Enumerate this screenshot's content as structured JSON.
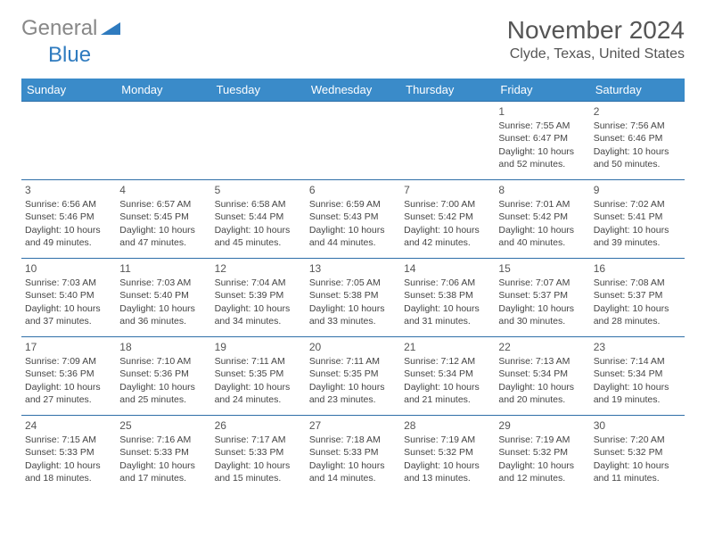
{
  "logo": {
    "gray": "General",
    "blue": "Blue"
  },
  "title": "November 2024",
  "location": "Clyde, Texas, United States",
  "colors": {
    "header_bg": "#3a8bc9",
    "header_text": "#ffffff",
    "border": "#2f6fa8",
    "logo_gray": "#888888",
    "logo_blue": "#2f7bbf",
    "body_text": "#444444"
  },
  "daysOfWeek": [
    "Sunday",
    "Monday",
    "Tuesday",
    "Wednesday",
    "Thursday",
    "Friday",
    "Saturday"
  ],
  "weeks": [
    [
      null,
      null,
      null,
      null,
      null,
      {
        "n": "1",
        "sr": "7:55 AM",
        "ss": "6:47 PM",
        "dl": "10 hours and 52 minutes."
      },
      {
        "n": "2",
        "sr": "7:56 AM",
        "ss": "6:46 PM",
        "dl": "10 hours and 50 minutes."
      }
    ],
    [
      {
        "n": "3",
        "sr": "6:56 AM",
        "ss": "5:46 PM",
        "dl": "10 hours and 49 minutes."
      },
      {
        "n": "4",
        "sr": "6:57 AM",
        "ss": "5:45 PM",
        "dl": "10 hours and 47 minutes."
      },
      {
        "n": "5",
        "sr": "6:58 AM",
        "ss": "5:44 PM",
        "dl": "10 hours and 45 minutes."
      },
      {
        "n": "6",
        "sr": "6:59 AM",
        "ss": "5:43 PM",
        "dl": "10 hours and 44 minutes."
      },
      {
        "n": "7",
        "sr": "7:00 AM",
        "ss": "5:42 PM",
        "dl": "10 hours and 42 minutes."
      },
      {
        "n": "8",
        "sr": "7:01 AM",
        "ss": "5:42 PM",
        "dl": "10 hours and 40 minutes."
      },
      {
        "n": "9",
        "sr": "7:02 AM",
        "ss": "5:41 PM",
        "dl": "10 hours and 39 minutes."
      }
    ],
    [
      {
        "n": "10",
        "sr": "7:03 AM",
        "ss": "5:40 PM",
        "dl": "10 hours and 37 minutes."
      },
      {
        "n": "11",
        "sr": "7:03 AM",
        "ss": "5:40 PM",
        "dl": "10 hours and 36 minutes."
      },
      {
        "n": "12",
        "sr": "7:04 AM",
        "ss": "5:39 PM",
        "dl": "10 hours and 34 minutes."
      },
      {
        "n": "13",
        "sr": "7:05 AM",
        "ss": "5:38 PM",
        "dl": "10 hours and 33 minutes."
      },
      {
        "n": "14",
        "sr": "7:06 AM",
        "ss": "5:38 PM",
        "dl": "10 hours and 31 minutes."
      },
      {
        "n": "15",
        "sr": "7:07 AM",
        "ss": "5:37 PM",
        "dl": "10 hours and 30 minutes."
      },
      {
        "n": "16",
        "sr": "7:08 AM",
        "ss": "5:37 PM",
        "dl": "10 hours and 28 minutes."
      }
    ],
    [
      {
        "n": "17",
        "sr": "7:09 AM",
        "ss": "5:36 PM",
        "dl": "10 hours and 27 minutes."
      },
      {
        "n": "18",
        "sr": "7:10 AM",
        "ss": "5:36 PM",
        "dl": "10 hours and 25 minutes."
      },
      {
        "n": "19",
        "sr": "7:11 AM",
        "ss": "5:35 PM",
        "dl": "10 hours and 24 minutes."
      },
      {
        "n": "20",
        "sr": "7:11 AM",
        "ss": "5:35 PM",
        "dl": "10 hours and 23 minutes."
      },
      {
        "n": "21",
        "sr": "7:12 AM",
        "ss": "5:34 PM",
        "dl": "10 hours and 21 minutes."
      },
      {
        "n": "22",
        "sr": "7:13 AM",
        "ss": "5:34 PM",
        "dl": "10 hours and 20 minutes."
      },
      {
        "n": "23",
        "sr": "7:14 AM",
        "ss": "5:34 PM",
        "dl": "10 hours and 19 minutes."
      }
    ],
    [
      {
        "n": "24",
        "sr": "7:15 AM",
        "ss": "5:33 PM",
        "dl": "10 hours and 18 minutes."
      },
      {
        "n": "25",
        "sr": "7:16 AM",
        "ss": "5:33 PM",
        "dl": "10 hours and 17 minutes."
      },
      {
        "n": "26",
        "sr": "7:17 AM",
        "ss": "5:33 PM",
        "dl": "10 hours and 15 minutes."
      },
      {
        "n": "27",
        "sr": "7:18 AM",
        "ss": "5:33 PM",
        "dl": "10 hours and 14 minutes."
      },
      {
        "n": "28",
        "sr": "7:19 AM",
        "ss": "5:32 PM",
        "dl": "10 hours and 13 minutes."
      },
      {
        "n": "29",
        "sr": "7:19 AM",
        "ss": "5:32 PM",
        "dl": "10 hours and 12 minutes."
      },
      {
        "n": "30",
        "sr": "7:20 AM",
        "ss": "5:32 PM",
        "dl": "10 hours and 11 minutes."
      }
    ]
  ]
}
